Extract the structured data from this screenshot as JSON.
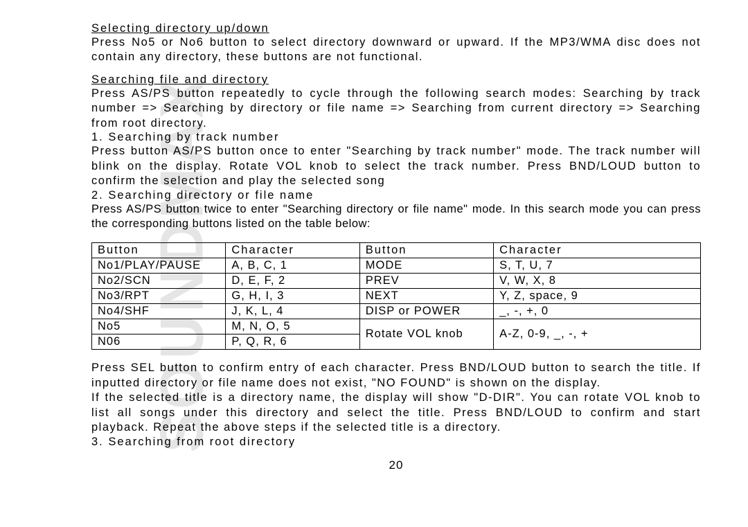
{
  "watermark": "SOUNDMAX",
  "section1": {
    "heading": "Selecting directory up/down",
    "body": "Press No5 or No6 button to select directory downward or upward. If the MP3/WMA disc does not contain any directory, these buttons are not functional."
  },
  "section2": {
    "heading": "Searching file and directory",
    "body": "Press AS/PS button repeatedly to cycle through the following search modes: Searching by track number => Searching by directory or file name => Searching from current directory => Searching from root directory."
  },
  "sub1": {
    "heading": "1. Searching by track number",
    "body": "Press button AS/PS button once to enter \"Searching by track number\" mode. The track number will blink on the display. Rotate VOL knob to select the track number. Press BND/LOUD button to confirm the selection and play the selected song"
  },
  "sub2": {
    "heading": "2. Searching directory or file name",
    "body": "Press AS/PS button twice to enter \"Searching directory or file name\" mode. In this search mode you can press the corresponding buttons listed on the table below:"
  },
  "table": {
    "headers": [
      "Button",
      "Character",
      "Button",
      "Character"
    ],
    "rows": [
      [
        "No1/PLAY/PAUSE",
        "A, B, C, 1",
        "MODE",
        "S, T, U, 7"
      ],
      [
        "No2/SCN",
        "D, E, F, 2",
        "PREV",
        "V, W, X, 8"
      ],
      [
        "No3/RPT",
        "G, H, I, 3",
        "NEXT",
        "Y, Z, space, 9"
      ],
      [
        "No4/SHF",
        "J, K, L, 4",
        "DISP or POWER",
        "_, -, +, 0"
      ],
      [
        "No5",
        "M, N, O, 5"
      ],
      [
        "N06",
        "P, Q, R, 6"
      ]
    ],
    "mergedButton": "Rotate VOL knob",
    "mergedChar": "A-Z, 0-9, _, -, +"
  },
  "after": {
    "p1": "Press SEL button to confirm entry of each character. Press BND/LOUD button to search the title. If inputted directory or file name does not exist, \"NO FOUND\" is shown on the display.",
    "p2": "If the selected title is a directory name, the display will show \"D-DIR\". You can rotate VOL knob to list all songs under this directory and select the title. Press BND/LOUD to confirm and start playback. Repeat the above steps if the selected title is a directory."
  },
  "sub3": {
    "heading": "3. Searching from root directory"
  },
  "pageNumber": "20"
}
